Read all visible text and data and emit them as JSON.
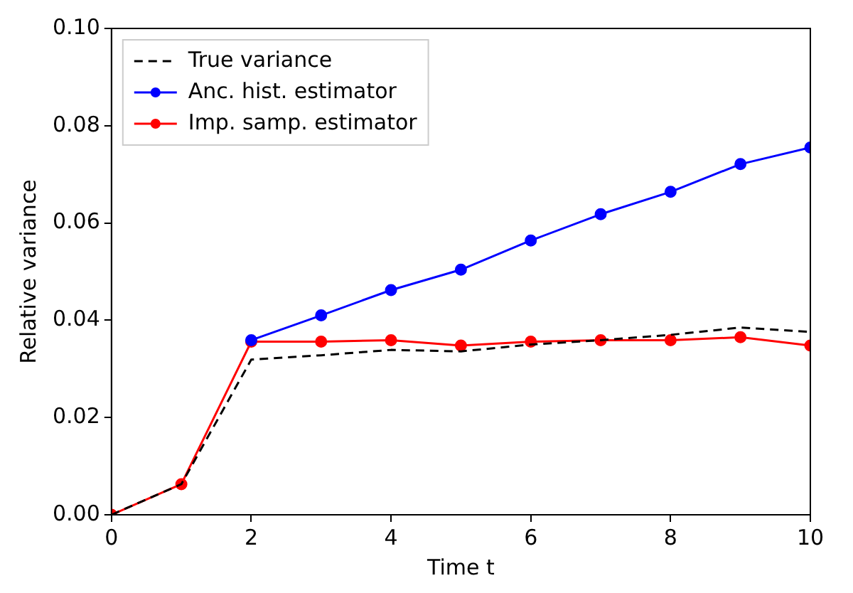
{
  "chart_data": {
    "type": "line",
    "xlabel": "Time t",
    "ylabel": "Relative variance",
    "xlim": [
      0,
      10
    ],
    "xticks": [
      0,
      2,
      4,
      6,
      8,
      10
    ],
    "ylim": [
      0,
      0.1
    ],
    "yticks": [
      {
        "value": 0,
        "label": "0.00"
      },
      0.02,
      0.04,
      0.06,
      0.08,
      {
        "value": 0.1,
        "label": "0.10"
      }
    ],
    "legend": "top left",
    "grid": false,
    "series": [
      {
        "name": "True variance",
        "color": "#000000",
        "line_style": "dashed",
        "marker": "none",
        "x": [
          0,
          1,
          2,
          3,
          4,
          5,
          6,
          7,
          8,
          9,
          10
        ],
        "values": [
          0,
          0.0063,
          0.0319,
          0.0328,
          0.0339,
          0.0336,
          0.035,
          0.0359,
          0.037,
          0.0385,
          0.0376
        ]
      },
      {
        "name": "Anc. hist. estimator",
        "color": "#0000ff",
        "line_style": "solid",
        "marker": "circle",
        "x": [
          2,
          3,
          4,
          5,
          6,
          7,
          8,
          9,
          10
        ],
        "values": [
          0.0359,
          0.041,
          0.0462,
          0.0504,
          0.0564,
          0.0618,
          0.0664,
          0.0721,
          0.0755
        ]
      },
      {
        "name": "Imp. samp. estimator",
        "color": "#ff0000",
        "line_style": "solid",
        "marker": "circle",
        "x": [
          0,
          1,
          2,
          3,
          4,
          5,
          6,
          7,
          8,
          9,
          10
        ],
        "values": [
          0,
          0.0063,
          0.0356,
          0.0356,
          0.0359,
          0.0348,
          0.0356,
          0.0359,
          0.0359,
          0.0365,
          0.0348
        ]
      }
    ]
  }
}
